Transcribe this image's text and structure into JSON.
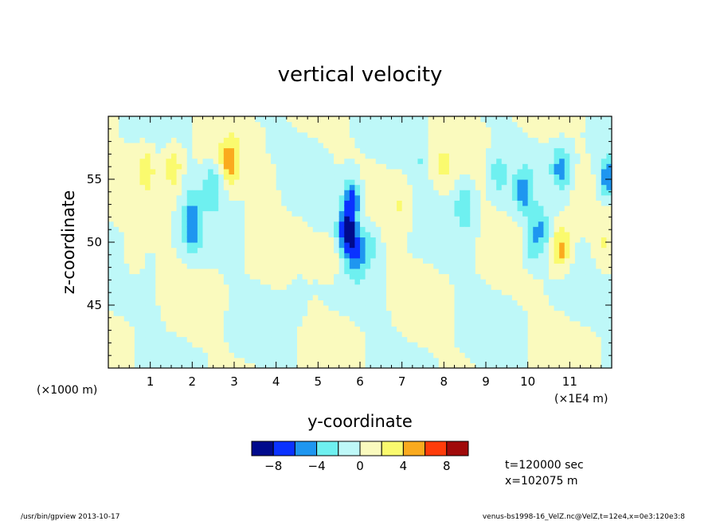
{
  "chart_data": {
    "type": "heatmap",
    "title": "vertical velocity",
    "xlabel": "y-coordinate",
    "ylabel": "z-coordinate",
    "x_unit_left": "(×1000 m)",
    "x_unit_right": "(×1E4 m)",
    "xlim": [
      0,
      12
    ],
    "ylim": [
      40,
      60
    ],
    "x_ticks": [
      1,
      2,
      3,
      4,
      5,
      6,
      7,
      8,
      9,
      10,
      11
    ],
    "x_tick_labels": [
      "1",
      "2",
      "3",
      "4",
      "5",
      "6",
      "7",
      "8",
      "9",
      "10",
      "11"
    ],
    "y_ticks": [
      45,
      50,
      55
    ],
    "y_tick_labels": [
      "45",
      "50",
      "55"
    ],
    "colorbar": {
      "levels": [
        -10,
        -8,
        -6,
        -4,
        -2,
        0,
        2,
        4,
        6,
        8,
        10
      ],
      "tick_values": [
        -8,
        -4,
        0,
        4,
        8
      ],
      "tick_labels": [
        "−8",
        "−4",
        "0",
        "4",
        "8"
      ],
      "colors": [
        "#000a8c",
        "#0a32ff",
        "#1e96f0",
        "#6ef0f0",
        "#bef8f8",
        "#fafabe",
        "#fafa6e",
        "#faaa1e",
        "#ff3c0a",
        "#a00a0a"
      ]
    },
    "info_lines": [
      "t=120000 sec",
      "x=102075 m"
    ],
    "features": [
      {
        "y": 5.7,
        "z": 51.0,
        "value": -9
      },
      {
        "y": 5.8,
        "z": 53.5,
        "value": -7
      },
      {
        "y": 5.9,
        "z": 49.0,
        "value": -5
      },
      {
        "y": 6.2,
        "z": 50.0,
        "value": -3
      },
      {
        "y": 2.0,
        "z": 50.5,
        "value": -4
      },
      {
        "y": 2.0,
        "z": 53.0,
        "value": -3
      },
      {
        "y": 2.5,
        "z": 54.5,
        "value": -4
      },
      {
        "y": 1.7,
        "z": 56.0,
        "value": -2
      },
      {
        "y": 9.3,
        "z": 55.5,
        "value": -3
      },
      {
        "y": 9.9,
        "z": 54.0,
        "value": -5
      },
      {
        "y": 10.3,
        "z": 51.0,
        "value": -4
      },
      {
        "y": 10.1,
        "z": 49.5,
        "value": -3
      },
      {
        "y": 10.8,
        "z": 56.0,
        "value": -5
      },
      {
        "y": 11.9,
        "z": 55.0,
        "value": -6
      },
      {
        "y": 8.5,
        "z": 53.0,
        "value": -4
      },
      {
        "y": 7.4,
        "z": 56.5,
        "value": -2
      },
      {
        "y": 1.6,
        "z": 56.0,
        "value": 5
      },
      {
        "y": 2.9,
        "z": 56.5,
        "value": 5
      },
      {
        "y": 0.9,
        "z": 56.0,
        "value": 3
      },
      {
        "y": 3.8,
        "z": 54.5,
        "value": 2
      },
      {
        "y": 7.0,
        "z": 53.0,
        "value": 2
      },
      {
        "y": 8.0,
        "z": 56.0,
        "value": 2
      },
      {
        "y": 10.8,
        "z": 49.5,
        "value": 5
      },
      {
        "y": 0.6,
        "z": 49.0,
        "value": 2
      },
      {
        "y": 5.3,
        "z": 48.5,
        "value": 2
      },
      {
        "y": 11.8,
        "z": 49.5,
        "value": 2
      },
      {
        "y": 1.0,
        "z": 43.0,
        "value": -1
      },
      {
        "y": 4.5,
        "z": 46.0,
        "value": -1
      },
      {
        "y": 8.5,
        "z": 45.5,
        "value": -1
      },
      {
        "y": 6.5,
        "z": 42.5,
        "value": -1
      }
    ]
  },
  "footer": {
    "left": "/usr/bin/gpview   2013-10-17",
    "right": "venus-bs1998-16_VelZ.nc@VelZ,t=12e4,x=0e3:120e3:8"
  }
}
